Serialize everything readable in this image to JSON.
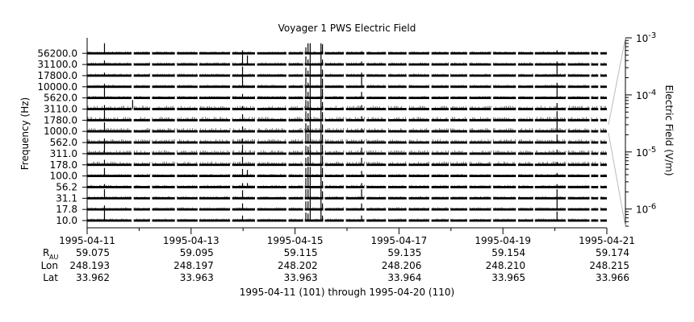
{
  "chart_data": {
    "type": "line",
    "title": "Voyager 1 PWS Electric Field",
    "ylabel": "Frequency (Hz)",
    "colorbar_label": "Electric Field (V/m)",
    "x_range": [
      "1995-04-11",
      "1995-04-21"
    ],
    "x_minor_ticks_per_day": 1,
    "grid": false,
    "legend": "none",
    "channels": [
      "10.0",
      "17.8",
      "31.1",
      "56.2",
      "100.0",
      "178.0",
      "311.0",
      "562.0",
      "1000.0",
      "1780.0",
      "3110.0",
      "5620.0",
      "10000.0",
      "17800.0",
      "31100.0",
      "56200.0"
    ],
    "colorbar": {
      "scale": "log",
      "range": [
        5e-07,
        0.001
      ],
      "ticks": [
        {
          "base": "10",
          "exp": "-6",
          "value": 1e-06
        },
        {
          "base": "10",
          "exp": "-5",
          "value": 1e-05
        },
        {
          "base": "10",
          "exp": "-4",
          "value": 0.0001
        },
        {
          "base": "10",
          "exp": "-3",
          "value": 0.001
        }
      ]
    },
    "data_gaps": [
      [
        "1995-04-11T20:30",
        "1995-04-11T21:30"
      ],
      [
        "1995-04-12T05:00",
        "1995-04-12T06:00"
      ],
      [
        "1995-04-12T16:30",
        "1995-04-12T17:30"
      ],
      [
        "1995-04-13T03:00",
        "1995-04-13T03:45"
      ],
      [
        "1995-04-13T18:00",
        "1995-04-13T19:00"
      ],
      [
        "1995-04-14T05:30",
        "1995-04-14T06:30"
      ],
      [
        "1995-04-14T20:00",
        "1995-04-14T21:00"
      ],
      [
        "1995-04-15T03:45",
        "1995-04-15T04:30"
      ],
      [
        "1995-04-15T13:00",
        "1995-04-15T13:45"
      ],
      [
        "1995-04-15T22:30",
        "1995-04-15T23:30"
      ],
      [
        "1995-04-16T08:00",
        "1995-04-16T09:00"
      ],
      [
        "1995-04-16T18:00",
        "1995-04-16T19:00"
      ],
      [
        "1995-04-17T03:30",
        "1995-04-17T04:30"
      ],
      [
        "1995-04-17T14:00",
        "1995-04-17T15:00"
      ],
      [
        "1995-04-17T23:00",
        "1995-04-17T23:45"
      ],
      [
        "1995-04-18T07:30",
        "1995-04-18T08:30"
      ],
      [
        "1995-04-18T18:30",
        "1995-04-18T19:30"
      ],
      [
        "1995-04-19T06:00",
        "1995-04-19T07:00"
      ],
      [
        "1995-04-19T14:00",
        "1995-04-19T14:45"
      ],
      [
        "1995-04-20T05:00",
        "1995-04-20T06:00"
      ],
      [
        "1995-04-20T16:00",
        "1995-04-20T16:45"
      ],
      [
        "1995-04-20T20:00",
        "1995-04-20T21:00"
      ]
    ],
    "events": [
      {
        "time": "1995-04-11T08:00",
        "amp": [
          1.0,
          0.4,
          0.9,
          0.3,
          0.8,
          0.5,
          1.0,
          0.4,
          0.9,
          1.0,
          0.4,
          1.0,
          0.3,
          0.3,
          0.4,
          1.0
        ]
      },
      {
        "time": "1995-04-11T21:00",
        "amp": [
          0,
          0,
          0,
          0,
          0,
          0,
          0,
          0,
          0,
          0,
          0.9,
          0,
          0,
          0,
          0,
          0
        ]
      },
      {
        "time": "1995-04-13T23:45",
        "amp": [
          0.5,
          0.6,
          0.8,
          0.4,
          0.7,
          0.8,
          0.9,
          0.4,
          0.5,
          0.6,
          0.3,
          0.4,
          1.0,
          0.9,
          1.0,
          0.3
        ]
      },
      {
        "time": "1995-04-14T02:00",
        "amp": [
          0,
          0,
          0,
          0.4,
          0.6,
          0,
          0,
          0,
          0,
          0,
          0,
          0,
          0,
          0,
          0.9,
          0
        ]
      },
      {
        "time": "1995-04-15T05:00",
        "amp": [
          0.8,
          0.8,
          0.9,
          0.9,
          0.8,
          0.7,
          0.8,
          1.0,
          0.8,
          0.9,
          0.9,
          1.0,
          0.9,
          0.8,
          0.8,
          0.6
        ]
      },
      {
        "time": "1995-04-15T06:00",
        "amp": [
          0.7,
          0.8,
          0.9,
          1.0,
          0.9,
          0.8,
          0.7,
          0.9,
          0.6,
          0.7,
          0.8,
          0.6,
          0.4,
          0.5,
          0.5,
          1.0
        ]
      },
      {
        "time": "1995-04-15T07:00",
        "amp": [
          1.0,
          1.0,
          1.0,
          1.0,
          0.9,
          1.0,
          0.9,
          1.0,
          1.0,
          1.0,
          1.0,
          1.0,
          1.0,
          1.0,
          1.0,
          1.0
        ]
      },
      {
        "time": "1995-04-15T12:00",
        "amp": [
          1.0,
          1.0,
          1.0,
          1.0,
          1.0,
          1.0,
          1.0,
          1.0,
          1.0,
          1.0,
          1.0,
          1.0,
          1.0,
          1.0,
          1.0,
          1.0
        ]
      },
      {
        "time": "1995-04-15T12:40",
        "amp": [
          0.5,
          0.6,
          0.7,
          0.6,
          0.8,
          0.9,
          0.9,
          0.8,
          0.7,
          0.8,
          0.7,
          0.9,
          0.8,
          0.6,
          0.5,
          0.9
        ]
      },
      {
        "time": "1995-04-16T06:45",
        "amp": [
          0.5,
          0.6,
          0.9,
          0.4,
          0.5,
          0.7,
          0.6,
          0.3,
          0.3,
          0.4,
          0.4,
          0.6,
          1.0,
          0.3,
          0.3,
          0.2
        ]
      },
      {
        "time": "1995-04-20T01:00",
        "amp": [
          0.9,
          1.0,
          0.9,
          0.3,
          0.3,
          0.3,
          0.4,
          0.8,
          1.0,
          0.9,
          0.6,
          1.0,
          0.4,
          1.0,
          0.3,
          0.3
        ]
      }
    ],
    "ephemeris": {
      "row_labels": {
        "r_base": "R",
        "r_sub": "AU",
        "lon": "Lon",
        "lat": "Lat"
      },
      "columns": [
        {
          "date": "1995-04-11",
          "r": "59.075",
          "lon": "248.193",
          "lat": "33.962"
        },
        {
          "date": "1995-04-13",
          "r": "59.095",
          "lon": "248.197",
          "lat": "33.963"
        },
        {
          "date": "1995-04-15",
          "r": "59.115",
          "lon": "248.202",
          "lat": "33.963"
        },
        {
          "date": "1995-04-17",
          "r": "59.135",
          "lon": "248.206",
          "lat": "33.964"
        },
        {
          "date": "1995-04-19",
          "r": "59.154",
          "lon": "248.210",
          "lat": "33.965"
        },
        {
          "date": "1995-04-21",
          "r": "59.174",
          "lon": "248.215",
          "lat": "33.966"
        }
      ]
    },
    "footer": "1995-04-11 (101) through 1995-04-20 (110)"
  }
}
